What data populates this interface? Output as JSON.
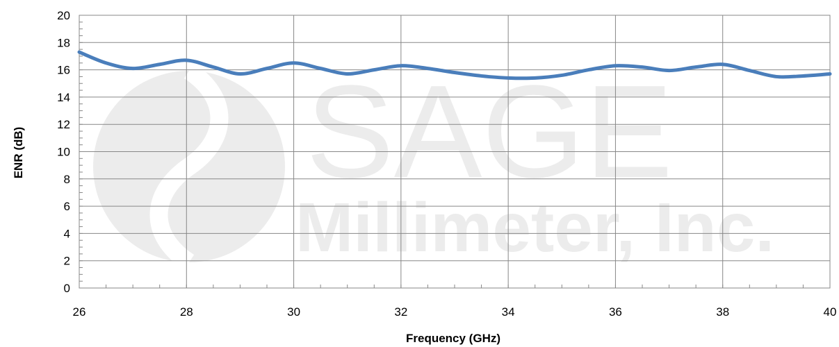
{
  "chart_data": {
    "type": "line",
    "title": "",
    "xlabel": "Frequency (GHz)",
    "ylabel": "ENR (dB)",
    "xlim": [
      26,
      40
    ],
    "ylim": [
      0,
      20
    ],
    "x_ticks": [
      26,
      28,
      30,
      32,
      34,
      36,
      38,
      40
    ],
    "y_ticks": [
      0,
      2,
      4,
      6,
      8,
      10,
      12,
      14,
      16,
      18,
      20
    ],
    "grid": true,
    "legend": "none",
    "series": [
      {
        "color": "#4a7ebb",
        "x": [
          26,
          26.5,
          27,
          27.5,
          28,
          28.5,
          29,
          29.5,
          30,
          30.5,
          31,
          31.5,
          32,
          32.5,
          33,
          33.5,
          34,
          34.5,
          35,
          35.5,
          36,
          36.5,
          37,
          37.5,
          38,
          38.5,
          39,
          39.5,
          40
        ],
        "y": [
          17.3,
          16.5,
          16.1,
          16.4,
          16.7,
          16.2,
          15.7,
          16.1,
          16.5,
          16.1,
          15.7,
          16.0,
          16.3,
          16.1,
          15.8,
          15.55,
          15.4,
          15.4,
          15.6,
          16.0,
          16.3,
          16.2,
          15.95,
          16.2,
          16.4,
          15.95,
          15.5,
          15.55,
          15.7
        ]
      }
    ]
  },
  "watermark": {
    "line1": "SAGE",
    "line2": "Millimeter, Inc."
  }
}
